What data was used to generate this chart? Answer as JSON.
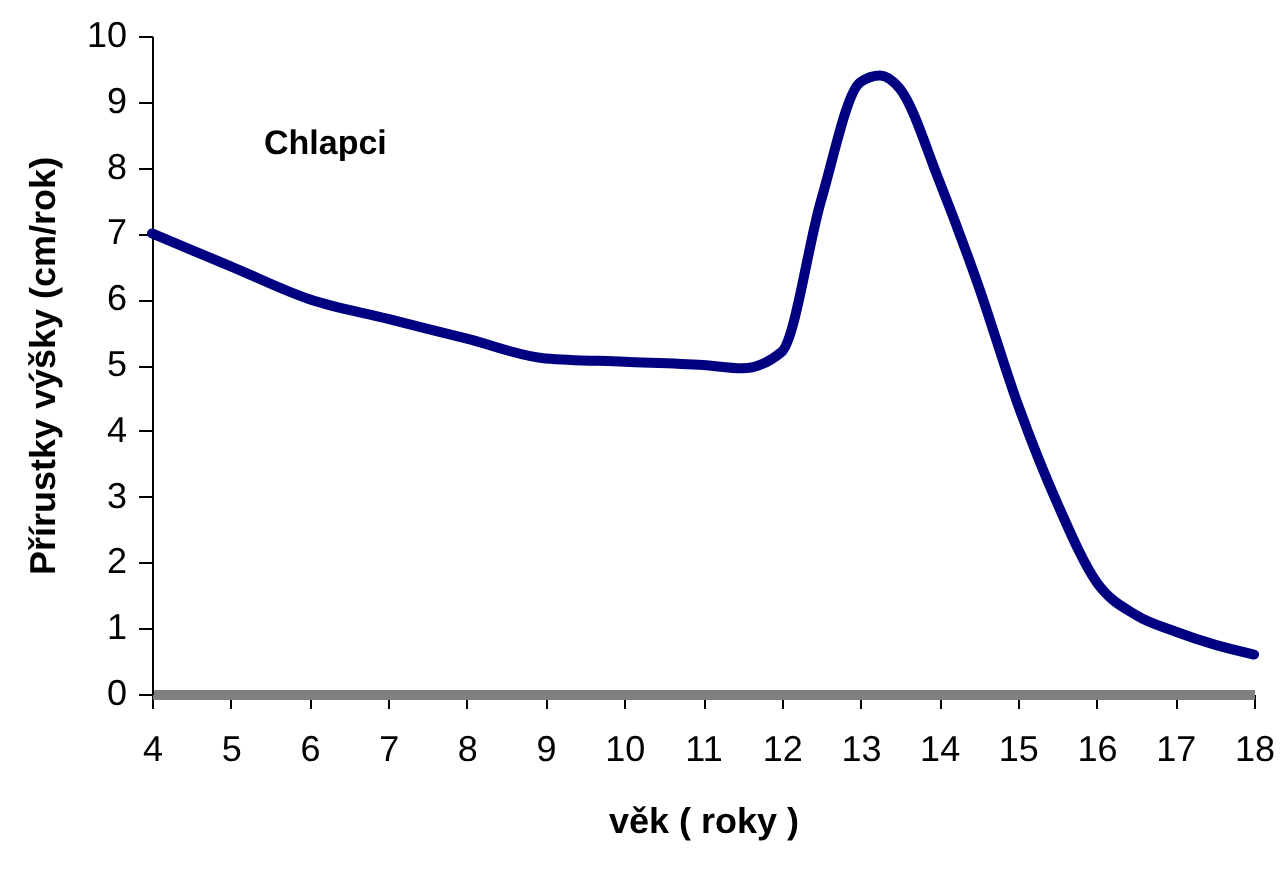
{
  "chart_data": {
    "type": "line",
    "title": "Chlapci",
    "xlabel": "věk ( roky )",
    "ylabel": "Přírustky výšky (cm/rok)",
    "x": [
      4,
      5,
      6,
      7,
      8,
      9,
      10,
      11,
      11.5,
      12,
      12.5,
      13,
      13.25,
      13.5,
      14,
      14.5,
      15,
      15.5,
      16,
      16.5,
      17,
      17.5,
      18
    ],
    "series": [
      {
        "color": "#000080",
        "values": [
          7.0,
          6.5,
          6.0,
          5.7,
          5.4,
          5.1,
          5.05,
          5.0,
          4.95,
          5.2,
          7.5,
          9.3,
          9.4,
          9.2,
          7.8,
          6.2,
          4.4,
          2.9,
          1.7,
          1.2,
          0.95,
          0.75,
          0.6
        ]
      }
    ],
    "xlim": [
      4,
      18
    ],
    "xticks": [
      4,
      5,
      6,
      7,
      8,
      9,
      10,
      11,
      12,
      13,
      14,
      15,
      16,
      17,
      18
    ],
    "ylim": [
      0,
      10
    ],
    "yticks": [
      0,
      1,
      2,
      3,
      4,
      5,
      6,
      7,
      8,
      9,
      10
    ],
    "grid": false,
    "marker": "none",
    "line_style": "solid"
  }
}
